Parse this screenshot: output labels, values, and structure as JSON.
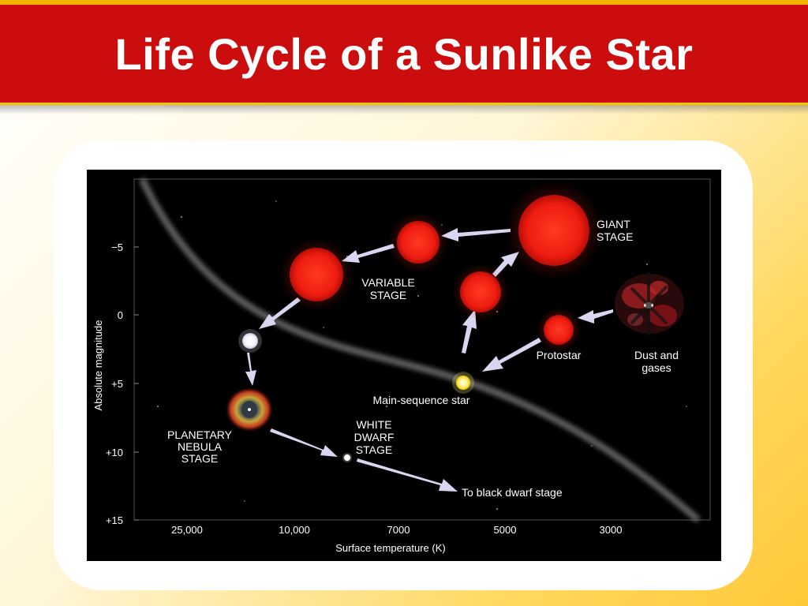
{
  "slide": {
    "title": "Life Cycle of a Sunlike Star"
  },
  "diagram": {
    "y_axis_label": "Absolute magnitude",
    "x_axis_label": "Surface temperature (K)",
    "y_ticks": [
      "−5",
      "0",
      "+5",
      "+10",
      "+15"
    ],
    "x_ticks": [
      "25,000",
      "10,000",
      "7000",
      "5000",
      "3000"
    ],
    "labels": {
      "giant": [
        "GIANT",
        "STAGE"
      ],
      "variable": [
        "VARIABLE",
        "STAGE"
      ],
      "protostar": "Protostar",
      "dust": [
        "Dust and",
        "gases"
      ],
      "main_sequence": "Main-sequence star",
      "planetary": [
        "PLANETARY",
        "NEBULA",
        "STAGE"
      ],
      "white_dwarf": [
        "WHITE",
        "DWARF",
        "STAGE"
      ],
      "black_dwarf": "To black dwarf stage"
    },
    "colors": {
      "red_star": "#ee1c10",
      "main_sequence_star": "#fff27a",
      "arrow": "#d9d6f2"
    }
  }
}
